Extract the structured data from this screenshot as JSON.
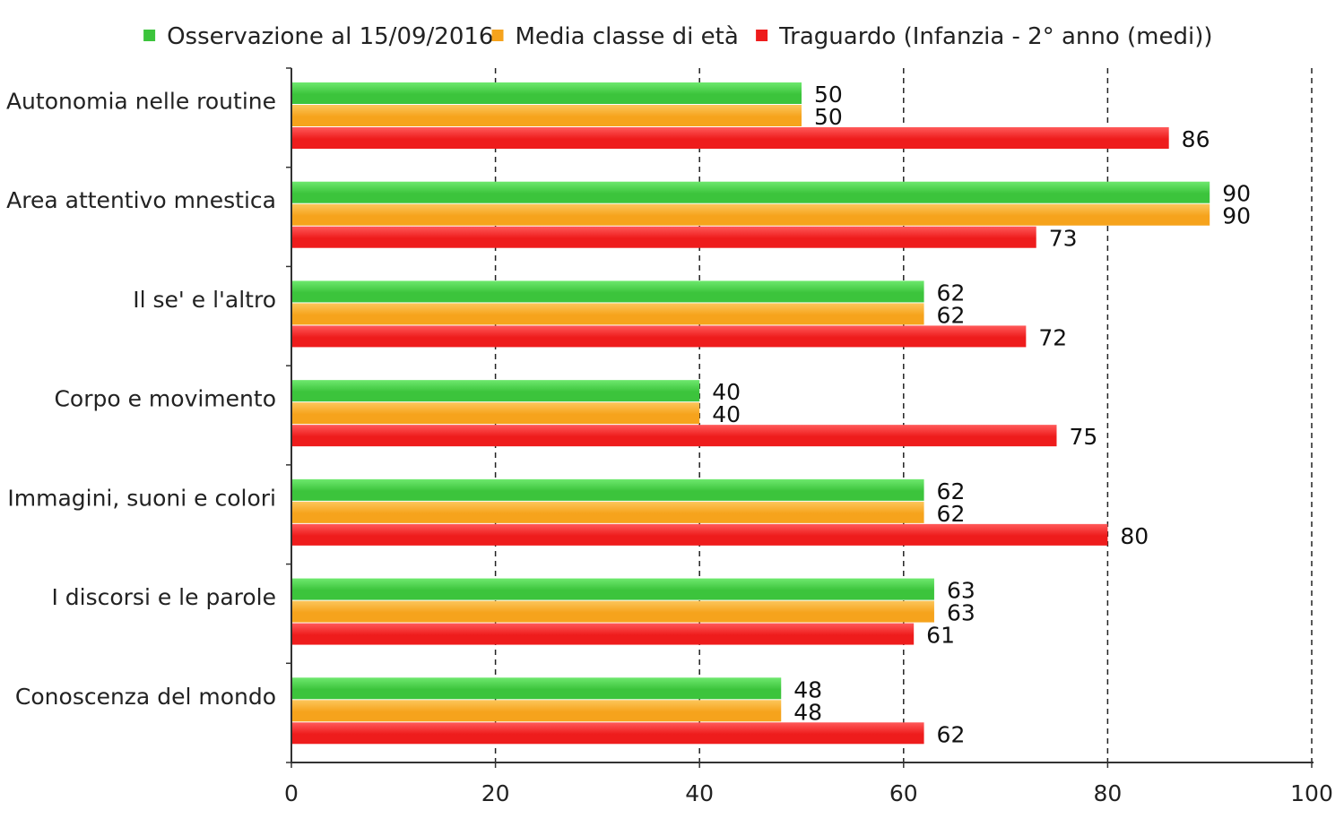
{
  "chart_data": {
    "type": "bar",
    "orientation": "horizontal",
    "categories": [
      "Autonomia nelle routine",
      "Area attentivo mnestica",
      "Il se' e l'altro",
      "Corpo e movimento",
      "Immagini, suoni e colori",
      "I discorsi e le parole",
      "Conoscenza del mondo"
    ],
    "series": [
      {
        "name": "Osservazione al 15/09/2016",
        "color": "#3cc43c",
        "values": [
          50,
          90,
          62,
          40,
          62,
          63,
          48
        ]
      },
      {
        "name": "Media classe di età",
        "color": "#f6a31c",
        "values": [
          50,
          90,
          62,
          40,
          62,
          63,
          48
        ]
      },
      {
        "name": "Traguardo (Infanzia - 2° anno (medi))",
        "color": "#ee1c1c",
        "values": [
          86,
          73,
          72,
          75,
          80,
          61,
          62
        ]
      }
    ],
    "xlim": [
      0,
      100
    ],
    "xticks": [
      0,
      20,
      40,
      60,
      80,
      100
    ],
    "xlabel": "",
    "ylabel": "",
    "title": "",
    "grid": "vertical dashed",
    "legend_position": "top"
  }
}
